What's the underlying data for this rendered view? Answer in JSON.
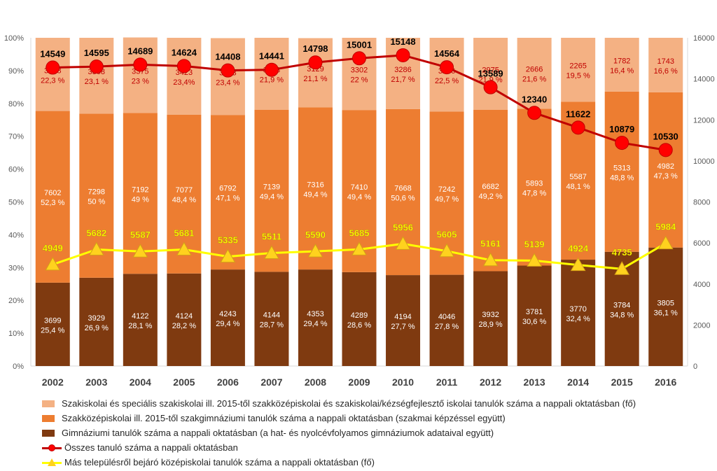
{
  "chart_data": {
    "type": "bar",
    "stacked": true,
    "percent_stacked": true,
    "categories": [
      "2002",
      "2003",
      "2004",
      "2005",
      "2006",
      "2007",
      "2008",
      "2009",
      "2010",
      "2011",
      "2012",
      "2013",
      "2014",
      "2015",
      "2016"
    ],
    "series": [
      {
        "name": "Gimnáziumi tanulók száma a nappali oktatásban (a hat- és nyolcévfolyamos gimnáziumok adataival együtt)",
        "kind": "stacked-bar",
        "color": "#7f3a10",
        "values": [
          3699,
          3929,
          4122,
          4124,
          4243,
          4144,
          4353,
          4289,
          4194,
          4046,
          3932,
          3781,
          3770,
          3784,
          3805
        ],
        "percent": [
          25.4,
          26.9,
          28.1,
          28.2,
          29.4,
          28.7,
          29.4,
          28.6,
          27.7,
          27.8,
          28.9,
          30.6,
          32.4,
          34.8,
          36.1
        ],
        "percent_labels": [
          "25,4 %",
          "26,9 %",
          "28,1 %",
          "28,2 %",
          "29,4 %",
          "28,7 %",
          "29,4 %",
          "28,6 %",
          "27,7 %",
          "27,8 %",
          "28,9 %",
          "30,6 %",
          "32,4 %",
          "34,8 %",
          "36,1 %"
        ]
      },
      {
        "name": "Szakközépiskolai ill. 2015-től szakgimnáziumi tanulók száma a nappali oktatásban (szakmai képzéssel együtt)",
        "kind": "stacked-bar",
        "color": "#ed7d31",
        "values": [
          7602,
          7298,
          7192,
          7077,
          6792,
          7139,
          7316,
          7410,
          7668,
          7242,
          6682,
          5893,
          5587,
          5313,
          4982
        ],
        "percent": [
          52.3,
          50,
          49,
          48.4,
          47.1,
          49.4,
          49.4,
          49.4,
          50.6,
          49.7,
          49.2,
          47.8,
          48.1,
          48.8,
          47.3
        ],
        "percent_labels": [
          "52,3 %",
          "50 %",
          "49 %",
          "48,4 %",
          "47,1 %",
          "49,4 %",
          "49,4 %",
          "49,4 %",
          "50,6 %",
          "49,7 %",
          "49,2 %",
          "47,8 %",
          "48,1 %",
          "48,8 %",
          "47,3 %"
        ]
      },
      {
        "name": "Szakiskolai és speciális szakiskolai ill. 2015-től szakközépiskolai és szakiskolai/kézségfejlesztő iskolai  tanulók száma a nappali oktatásban (fő)",
        "kind": "stacked-bar",
        "color": "#f4b183",
        "values": [
          3248,
          3368,
          3375,
          3423,
          3373,
          3158,
          3129,
          3302,
          3286,
          3276,
          2975,
          2666,
          2265,
          1782,
          1743
        ],
        "percent": [
          22.3,
          23.1,
          23,
          23.4,
          23.4,
          21.9,
          21.1,
          22,
          21.7,
          22.5,
          21.9,
          21.6,
          19.5,
          16.4,
          16.6
        ],
        "percent_labels": [
          "22,3 %",
          "23,1 %",
          "23 %",
          "23,4%",
          "23,4 %",
          "21,9 %",
          "21,1 %",
          "22 %",
          "21,7 %",
          "22,5 %",
          "21,9 %",
          "21,6 %",
          "19,5 %",
          "16,4 %",
          "16,6 %"
        ]
      },
      {
        "name": "Összes tanuló száma a nappali oktatásban",
        "kind": "line-secondary",
        "color": "#c00000",
        "marker_color": "#ff0000",
        "values": [
          14549,
          14595,
          14689,
          14624,
          14408,
          14441,
          14798,
          15001,
          15148,
          14564,
          13589,
          12340,
          11622,
          10879,
          10530
        ]
      },
      {
        "name": "Más településről bejáró középiskolai tanulók száma a nappali oktatásban (fő)",
        "kind": "line-secondary",
        "color": "#ffff00",
        "marker_color": "#ffd21e",
        "label_color": "#ffff00",
        "values": [
          4949,
          5682,
          5587,
          5681,
          5335,
          5511,
          5590,
          5685,
          5956,
          5605,
          5161,
          5139,
          4924,
          4735,
          5984
        ]
      }
    ],
    "y_left": {
      "min": 0,
      "max": 100,
      "step": 10,
      "tick_labels": [
        "0%",
        "10%",
        "20%",
        "30%",
        "40%",
        "50%",
        "60%",
        "70%",
        "80%",
        "90%",
        "100%"
      ]
    },
    "y_right": {
      "min": 0,
      "max": 16000,
      "step": 2000,
      "tick_labels": [
        "0",
        "2000",
        "4000",
        "6000",
        "8000",
        "10000",
        "12000",
        "14000",
        "16000"
      ]
    },
    "title": "",
    "xlabel": "",
    "ylabel": "",
    "grid": false,
    "legend_position": "bottom"
  },
  "legend": {
    "items": [
      "Szakiskolai és speciális szakiskolai ill. 2015-től szakközépiskolai és szakiskolai/kézségfejlesztő iskolai  tanulók száma a nappali oktatásban (fő)",
      "Szakközépiskolai ill. 2015-től szakgimnáziumi tanulók száma a nappali oktatásban (szakmai képzéssel együtt)",
      "Gimnáziumi tanulók száma a nappali oktatásban (a hat- és nyolcévfolyamos gimnáziumok adataival együtt)",
      "Összes tanuló száma a nappali oktatásban",
      "Más településről bejáró középiskolai tanulók száma a nappali oktatásban (fő)"
    ],
    "colors": [
      "#f4b183",
      "#ed7d31",
      "#7f3a10",
      "#c00000",
      "#ffff00"
    ]
  }
}
